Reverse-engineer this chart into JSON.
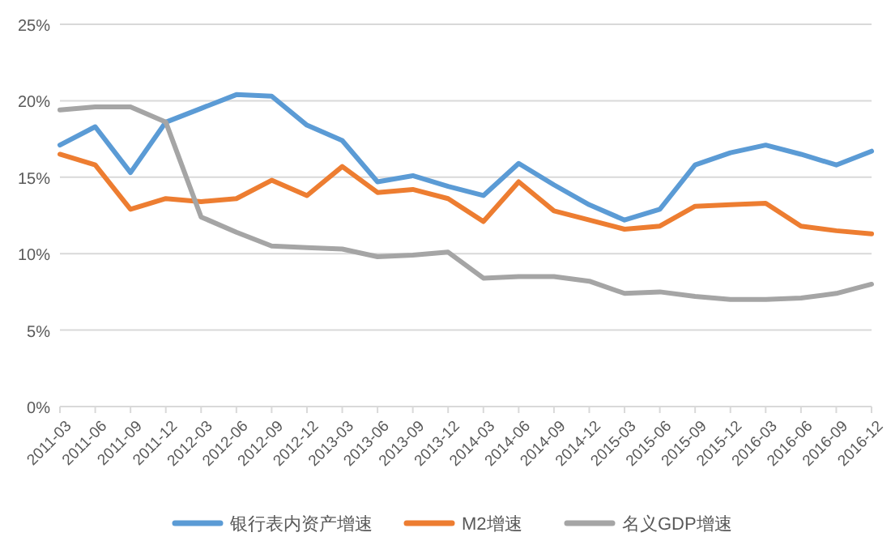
{
  "chart_data": {
    "type": "line",
    "categories": [
      "2011-03",
      "2011-06",
      "2011-09",
      "2011-12",
      "2012-03",
      "2012-06",
      "2012-09",
      "2012-12",
      "2013-03",
      "2013-06",
      "2013-09",
      "2013-12",
      "2014-03",
      "2014-06",
      "2014-09",
      "2014-12",
      "2015-03",
      "2015-06",
      "2015-09",
      "2015-12",
      "2016-03",
      "2016-06",
      "2016-09",
      "2016-12"
    ],
    "series": [
      {
        "name": "银行表内资产增速",
        "color": "#5b9bd5",
        "values": [
          17.1,
          18.3,
          15.3,
          18.6,
          19.5,
          20.4,
          20.3,
          18.4,
          17.4,
          14.7,
          15.1,
          14.4,
          13.8,
          15.9,
          14.5,
          13.2,
          12.2,
          12.9,
          15.8,
          16.6,
          17.1,
          16.5,
          15.8,
          16.7
        ]
      },
      {
        "name": "M2增速",
        "color": "#ed7d31",
        "values": [
          16.5,
          15.8,
          12.9,
          13.6,
          13.4,
          13.6,
          14.8,
          13.8,
          15.7,
          14.0,
          14.2,
          13.6,
          12.1,
          14.7,
          12.8,
          12.2,
          11.6,
          11.8,
          13.1,
          13.2,
          13.3,
          11.8,
          11.5,
          11.3
        ]
      },
      {
        "name": "名义GDP增速",
        "color": "#a5a5a5",
        "values": [
          19.4,
          19.6,
          19.6,
          18.6,
          12.4,
          11.4,
          10.5,
          10.4,
          10.3,
          9.8,
          9.9,
          10.1,
          8.4,
          8.5,
          8.5,
          8.2,
          7.4,
          7.5,
          7.2,
          7.0,
          7.0,
          7.1,
          7.4,
          8.0
        ]
      }
    ],
    "ylim": [
      0,
      25
    ],
    "yticks": [
      {
        "value": 0,
        "label": "0%"
      },
      {
        "value": 5,
        "label": "5%"
      },
      {
        "value": 10,
        "label": "10%"
      },
      {
        "value": 15,
        "label": "15%"
      },
      {
        "value": 20,
        "label": "20%"
      },
      {
        "value": 25,
        "label": "25%"
      }
    ],
    "grid": "y",
    "legend": "bottom",
    "marker": "none",
    "line_style": "solid"
  }
}
